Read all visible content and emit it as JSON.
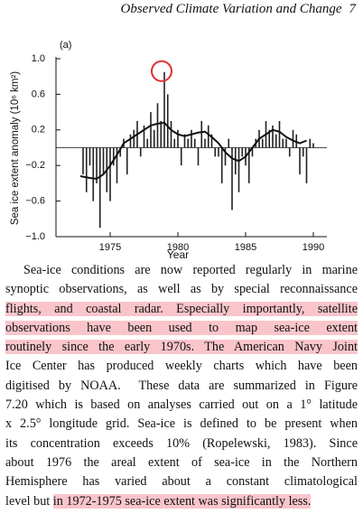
{
  "header": {
    "title": "Observed Climate Variation and Change",
    "page": "7"
  },
  "chart_data": {
    "type": "bar",
    "annotation": "(a)",
    "xlabel": "Year",
    "ylabel": "Sea ice extent anomaly (10⁶ km²)",
    "x": [
      1973,
      1973.25,
      1973.5,
      1973.75,
      1974,
      1974.25,
      1974.5,
      1974.75,
      1975,
      1975.25,
      1975.5,
      1975.75,
      1976,
      1976.25,
      1976.5,
      1976.75,
      1977,
      1977.25,
      1977.5,
      1977.75,
      1978,
      1978.25,
      1978.5,
      1978.75,
      1979,
      1979.25,
      1979.5,
      1979.75,
      1980,
      1980.25,
      1980.5,
      1980.75,
      1981,
      1981.25,
      1981.5,
      1981.75,
      1982,
      1982.25,
      1982.5,
      1982.75,
      1983,
      1983.25,
      1983.5,
      1983.75,
      1984,
      1984.25,
      1984.5,
      1984.75,
      1985,
      1985.25,
      1985.5,
      1985.75,
      1986,
      1986.25,
      1986.5,
      1986.75,
      1987,
      1987.25,
      1987.5,
      1987.75,
      1988,
      1988.25,
      1988.5,
      1988.75,
      1989,
      1989.25,
      1989.5,
      1989.75,
      1990
    ],
    "values": [
      -0.3,
      -0.5,
      -0.2,
      -0.6,
      -0.4,
      -0.9,
      -0.3,
      -0.5,
      -0.6,
      -0.2,
      -0.4,
      -0.1,
      0.1,
      -0.3,
      0.15,
      0.2,
      0.3,
      -0.1,
      0.25,
      0.1,
      0.4,
      0.2,
      0.5,
      0.3,
      0.85,
      0.6,
      0.3,
      0.1,
      0.2,
      -0.2,
      0.15,
      0.1,
      0.2,
      0.1,
      -0.2,
      0.3,
      0.1,
      0.25,
      0.15,
      -0.1,
      -0.1,
      -0.4,
      -0.2,
      0.1,
      -0.7,
      -0.3,
      -0.5,
      -0.1,
      -0.2,
      -0.4,
      -0.1,
      0.1,
      0.2,
      0.1,
      0.3,
      0.2,
      0.25,
      0.15,
      0.3,
      0.1,
      0.1,
      -0.1,
      0.2,
      0.15,
      -0.3,
      -0.1,
      -0.4,
      0.1,
      0.05
    ],
    "color": "#222222",
    "line": {
      "x": [
        1972.8,
        1973.5,
        1974,
        1974.5,
        1975,
        1975.5,
        1976,
        1976.5,
        1977,
        1977.5,
        1978,
        1978.5,
        1979,
        1979.5,
        1980,
        1980.5,
        1981,
        1981.5,
        1982,
        1982.5,
        1983,
        1983.5,
        1984,
        1984.5,
        1985,
        1985.5,
        1986,
        1986.5,
        1987,
        1987.5,
        1988,
        1988.5,
        1989,
        1989.5
      ],
      "values": [
        -0.32,
        -0.34,
        -0.35,
        -0.3,
        -0.2,
        -0.08,
        0.05,
        0.1,
        0.15,
        0.2,
        0.25,
        0.27,
        0.28,
        0.2,
        0.15,
        0.13,
        0.15,
        0.17,
        0.18,
        0.12,
        0.05,
        -0.05,
        -0.12,
        -0.15,
        -0.1,
        0,
        0.1,
        0.15,
        0.2,
        0.18,
        0.12,
        0.08,
        0.05,
        0.08
      ],
      "color": "#111111"
    },
    "xlim": [
      1971,
      1991
    ],
    "xticks": [
      1975,
      1980,
      1985,
      1990
    ],
    "ylim": [
      -1,
      1
    ],
    "yticks": [
      {
        "value": -1,
        "label": "−1.0"
      },
      {
        "value": -0.6,
        "label": "−0.6"
      },
      {
        "value": -0.2,
        "label": "−0.2"
      },
      0.2,
      0.6,
      {
        "value": 1,
        "label": "1.0"
      }
    ],
    "highlight_color": "#e03030"
  },
  "paragraph": {
    "lines": [
      [
        {
          "text": "Sea-ice conditions are now reported regularly in marine",
          "highlight": false
        }
      ],
      [
        {
          "text": "synoptic observations, as well as by special reconnaissance",
          "highlight": false
        }
      ],
      [
        {
          "text": "flights, and coastal radar. Especially importantly, satellite",
          "highlight": true
        }
      ],
      [
        {
          "text": "observations have been used to map sea-ice extent",
          "highlight": true
        }
      ],
      [
        {
          "text": "routinely since the early 1970s. The American Navy Joint",
          "highlight": true
        }
      ],
      [
        {
          "text": "Ice Center has produced weekly charts which have been",
          "highlight": false
        }
      ],
      [
        {
          "text": "digitised by NOAA.  These data are summarized in Figure",
          "highlight": false
        }
      ],
      [
        {
          "text": "7.20 which is based on analyses carried out on a 1° latitude",
          "highlight": false
        }
      ],
      [
        {
          "text": "x 2.5° longitude grid. Sea-ice is defined to be present when",
          "highlight": false
        }
      ],
      [
        {
          "text": "its concentration exceeds 10% (Ropelewski, 1983). Since",
          "highlight": false
        }
      ],
      [
        {
          "text": "about 1976 the areal extent of sea-ice in the Northern",
          "highlight": false
        }
      ],
      [
        {
          "text": "Hemisphere has varied about a constant climatological",
          "highlight": false
        }
      ],
      [
        {
          "text": "level but ",
          "highlight": false
        },
        {
          "text": "in 1972-1975 sea-ice extent was significantly less.",
          "highlight": true
        }
      ]
    ]
  }
}
